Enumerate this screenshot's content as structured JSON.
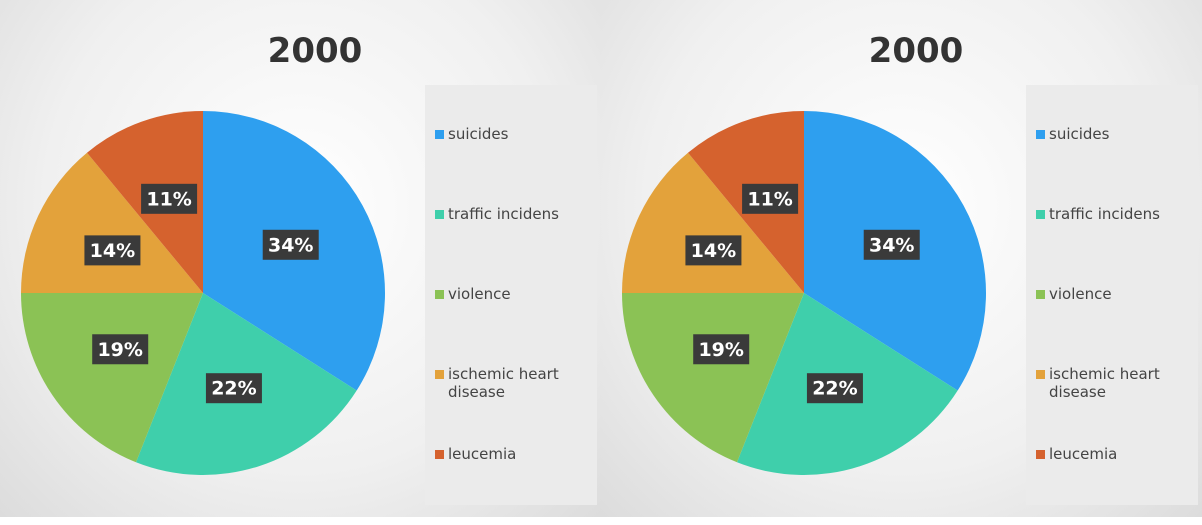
{
  "chart_data": [
    {
      "type": "pie",
      "title": "2000",
      "categories": [
        "suicides",
        "traffic incidens",
        "violence",
        "ischemic heart disease",
        "leucemia"
      ],
      "values": [
        34,
        22,
        19,
        14,
        11
      ],
      "value_labels": [
        "34%",
        "22%",
        "19%",
        "14%",
        "11%"
      ],
      "colors": [
        "#2e9fef",
        "#3fcfab",
        "#8bc255",
        "#e3a23b",
        "#d5622e"
      ],
      "legend": "right"
    },
    {
      "type": "pie",
      "title": "2000",
      "categories": [
        "suicides",
        "traffic incidens",
        "violence",
        "ischemic heart disease",
        "leucemia"
      ],
      "values": [
        34,
        22,
        19,
        14,
        11
      ],
      "value_labels": [
        "34%",
        "22%",
        "19%",
        "14%",
        "11%"
      ],
      "colors": [
        "#2e9fef",
        "#3fcfab",
        "#8bc255",
        "#e3a23b",
        "#d5622e"
      ],
      "legend": "right"
    }
  ]
}
